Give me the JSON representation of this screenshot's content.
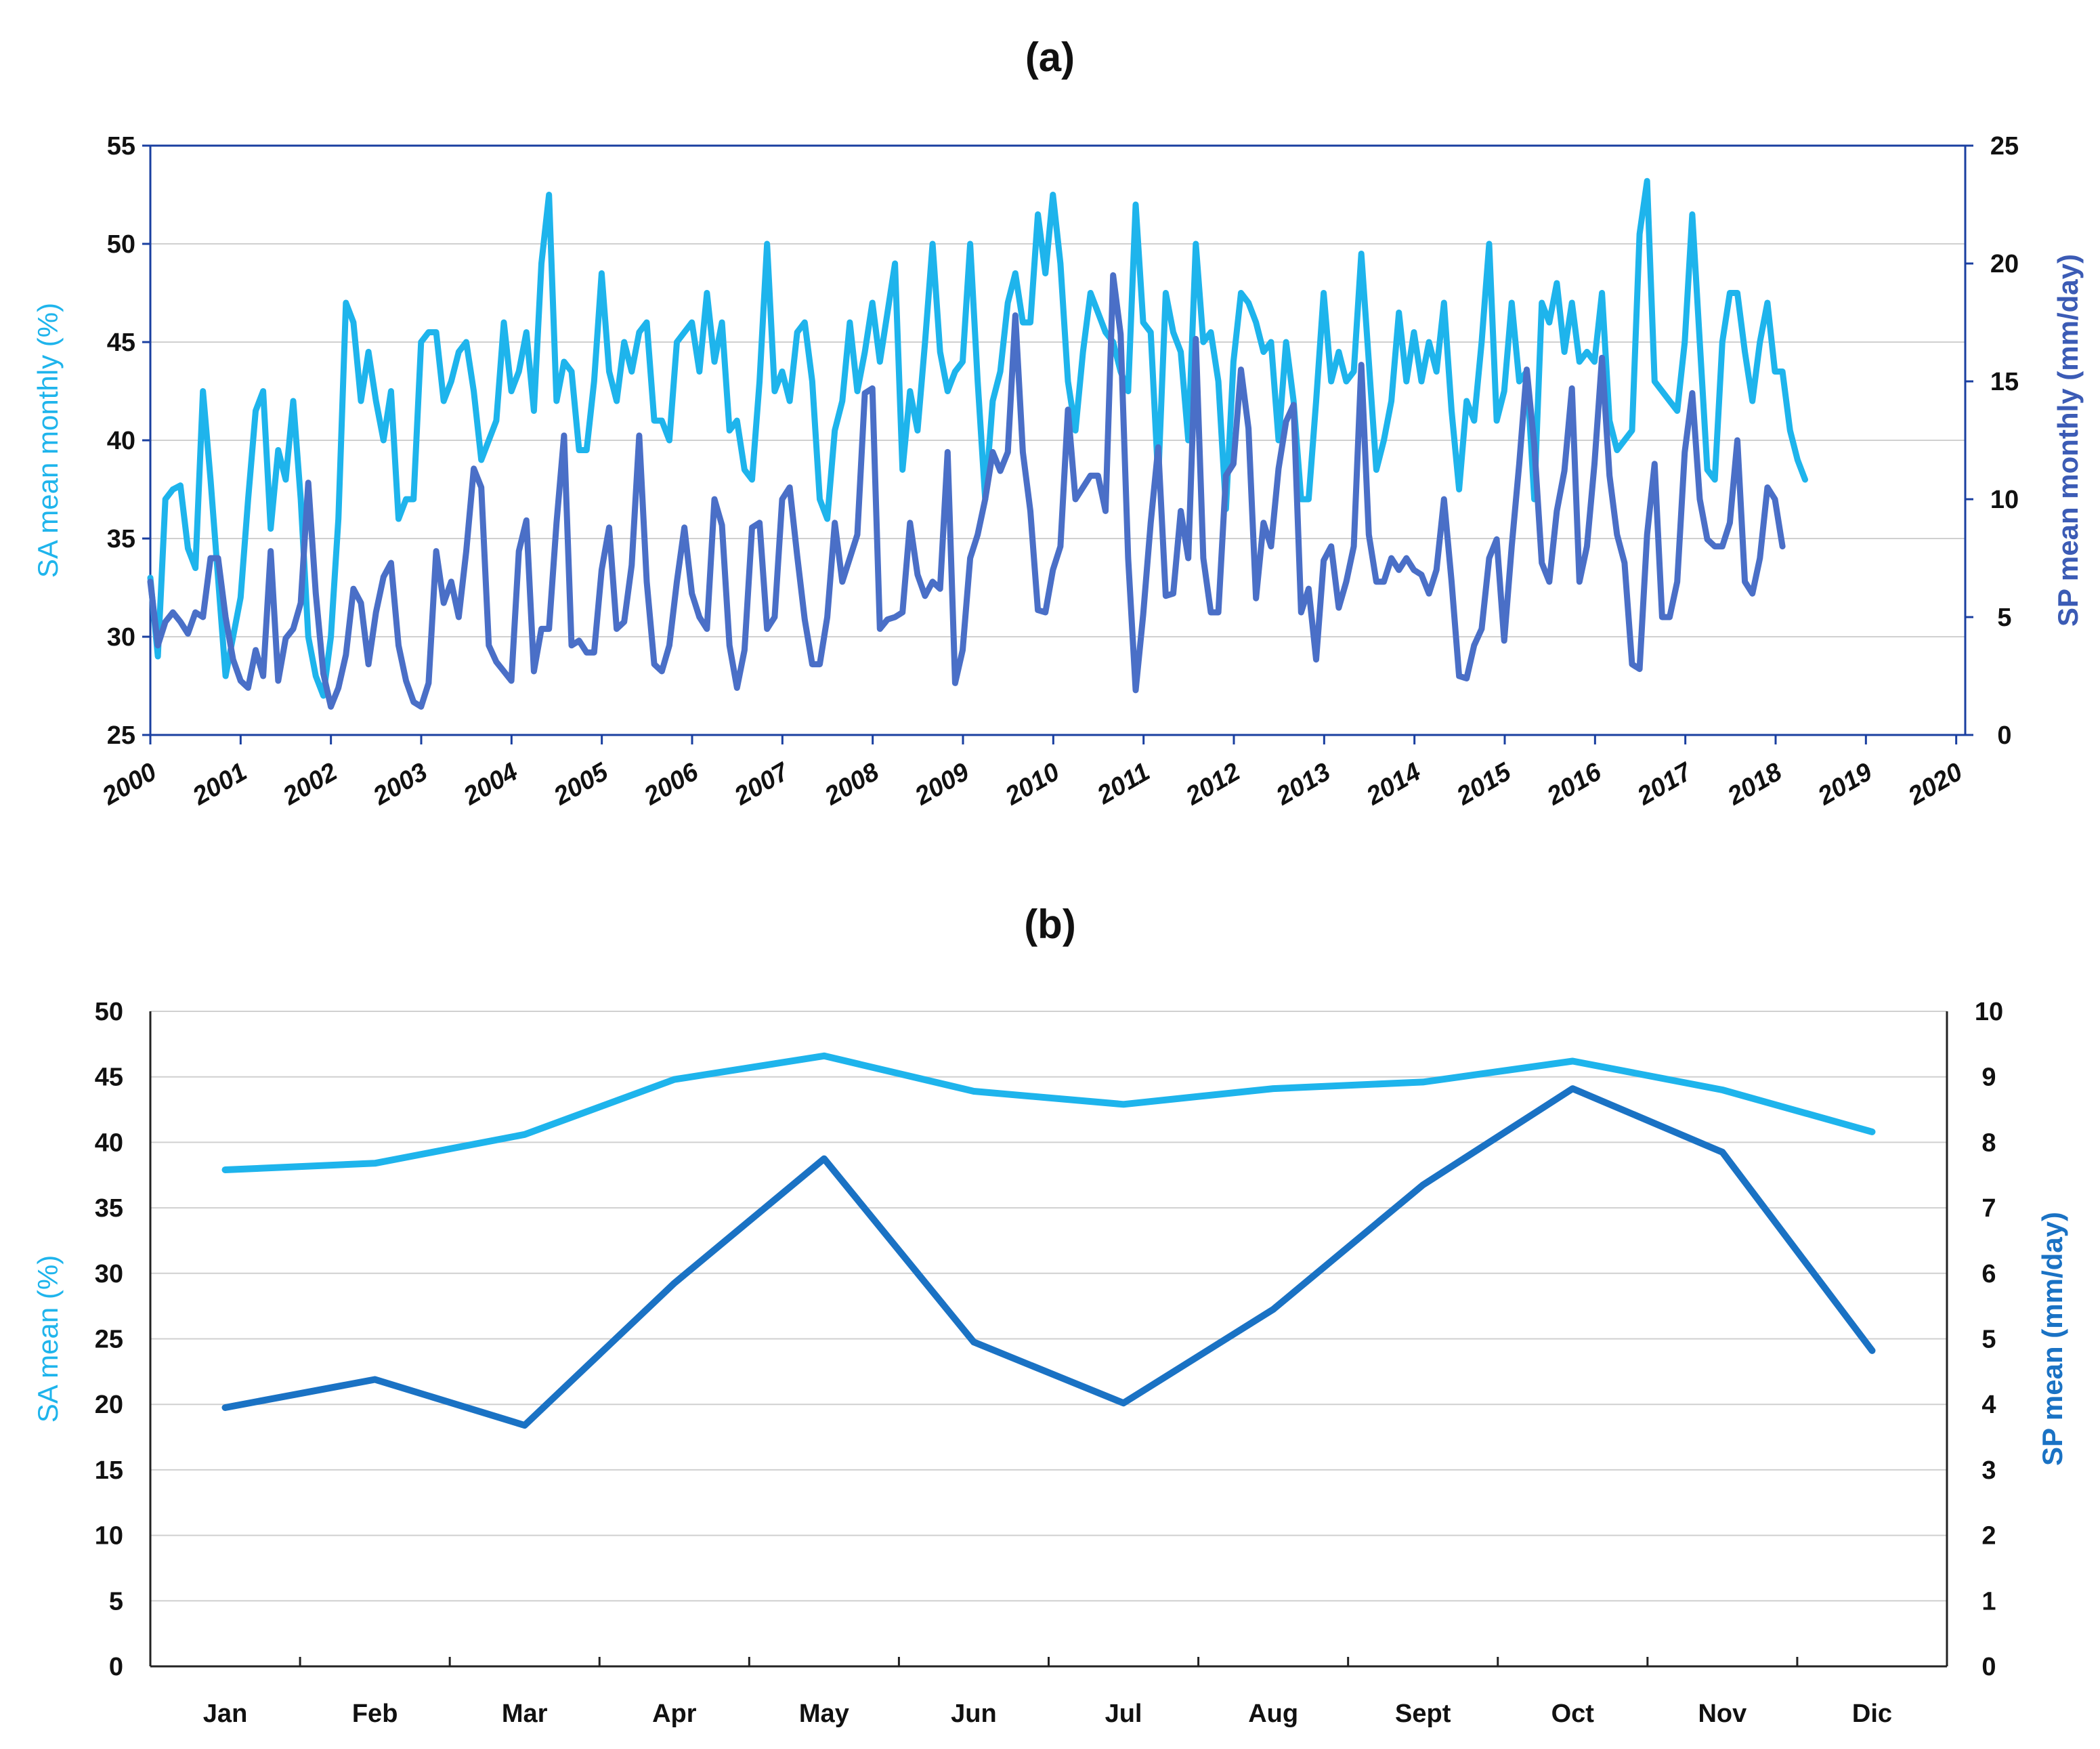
{
  "chart_data": [
    {
      "type": "line",
      "panel_label": "(a)",
      "ylabel_left": "SA mean monthly (%)",
      "ylabel_right": "SP mean monthly  (mm/day)",
      "ylim_left": [
        25,
        55
      ],
      "ylim_right": [
        0,
        25
      ],
      "yticks_left": [
        "25",
        "30",
        "35",
        "40",
        "45",
        "50",
        "55"
      ],
      "yticks_right": [
        "0",
        "5",
        "10",
        "15",
        "20",
        "25"
      ],
      "xlim": [
        2000,
        2020.1
      ],
      "xticks": [
        "2000",
        "2001",
        "2002",
        "2003",
        "2004",
        "2005",
        "2006",
        "2007",
        "2008",
        "2009",
        "2010",
        "2011",
        "2012",
        "2013",
        "2014",
        "2015",
        "2016",
        "2017",
        "2018",
        "2019",
        "2020"
      ],
      "grid": true,
      "series": [
        {
          "name": "SA",
          "axis": "left",
          "color": "#1EB4EC",
          "x_start": 2000,
          "x_step": 0.0833,
          "values": [
            33,
            29,
            37,
            37.5,
            37.7,
            34.5,
            33.5,
            42.5,
            38,
            33,
            28,
            30,
            32,
            37,
            41.5,
            42.5,
            35.5,
            39.5,
            38,
            42,
            37,
            30,
            28,
            27,
            30,
            36,
            47,
            46,
            42,
            44.5,
            42,
            40,
            42.5,
            36,
            37,
            37,
            45,
            45.5,
            45.5,
            42,
            43,
            44.5,
            45,
            42.5,
            39,
            40,
            41,
            46,
            42.5,
            43.5,
            45.5,
            41.5,
            49,
            52.5,
            42,
            44,
            43.5,
            39.5,
            39.5,
            43,
            48.5,
            43.5,
            42,
            45,
            43.5,
            45.5,
            46,
            41,
            41,
            40,
            45,
            45.5,
            46,
            43.5,
            47.5,
            44,
            46,
            40.5,
            41,
            38.5,
            38,
            43,
            50,
            42.5,
            43.5,
            42,
            45.5,
            46,
            43,
            37,
            36,
            40.5,
            42,
            46,
            42.5,
            44.5,
            47,
            44,
            46.5,
            49,
            38.5,
            42.5,
            40.5,
            45,
            50,
            44.5,
            42.5,
            43.5,
            44,
            50,
            43,
            37,
            42,
            43.5,
            47,
            48.5,
            46,
            46,
            51.5,
            48.5,
            52.5,
            49,
            43,
            40.5,
            44.5,
            47.5,
            46.5,
            45.5,
            45,
            43.5,
            42.5,
            52,
            46,
            45.5,
            38,
            47.5,
            45.5,
            44.5,
            40,
            50,
            45,
            45.5,
            43,
            36.5,
            44,
            47.5,
            47,
            46,
            44.5,
            45,
            40,
            45,
            42,
            37,
            37,
            42,
            47.5,
            43,
            44.5,
            43,
            43.5,
            49.5,
            44,
            38.5,
            40,
            42,
            46.5,
            43,
            45.5,
            43,
            45,
            43.5,
            47,
            41.5,
            37.5,
            42,
            41,
            45,
            50,
            41,
            42.5,
            47,
            43,
            43.5,
            37,
            47,
            46,
            48,
            44.5,
            47,
            44,
            44.5,
            44,
            47.5,
            41,
            39.5,
            40,
            40.5,
            50.5,
            53.2,
            43,
            42.5,
            42,
            41.5,
            45,
            51.5,
            45,
            38.5,
            38,
            45,
            47.5,
            47.5,
            44.5,
            42,
            45,
            47,
            43.5,
            43.5,
            40.5,
            39,
            38
          ]
        },
        {
          "name": "SP",
          "axis": "right",
          "color": "#4A6FC7",
          "x_start": 2000,
          "x_step": 0.0833,
          "values": [
            6.5,
            3.8,
            4.8,
            5.2,
            4.8,
            4.3,
            5.2,
            5.0,
            7.5,
            7.5,
            5.0,
            3.2,
            2.3,
            2.0,
            3.6,
            2.5,
            7.8,
            2.3,
            4.1,
            4.5,
            5.6,
            10.7,
            6.0,
            2.6,
            1.2,
            2.0,
            3.4,
            6.2,
            5.6,
            3.0,
            5.2,
            6.7,
            7.3,
            3.8,
            2.3,
            1.4,
            1.2,
            2.2,
            7.8,
            5.6,
            6.5,
            5.0,
            7.8,
            11.3,
            10.5,
            3.8,
            3.1,
            2.7,
            2.3,
            7.8,
            9.1,
            2.7,
            4.5,
            4.5,
            9.0,
            12.7,
            3.8,
            4.0,
            3.5,
            3.5,
            7.0,
            8.8,
            4.5,
            4.8,
            7.2,
            12.7,
            6.5,
            3.0,
            2.7,
            3.8,
            6.5,
            8.8,
            6.0,
            5.0,
            4.5,
            10.0,
            8.9,
            3.8,
            2.0,
            3.6,
            8.8,
            9.0,
            4.5,
            5.0,
            10.0,
            10.5,
            7.6,
            4.9,
            3.0,
            3.0,
            5.0,
            9.0,
            6.5,
            7.5,
            8.5,
            14.5,
            14.7,
            4.5,
            4.9,
            5.0,
            5.2,
            9.0,
            6.8,
            5.9,
            6.5,
            6.2,
            12.0,
            2.2,
            3.6,
            7.5,
            8.5,
            10.0,
            12.0,
            11.2,
            12.0,
            17.8,
            12.0,
            9.5,
            5.3,
            5.2,
            7.0,
            8.0,
            13.8,
            10.0,
            10.5,
            11.0,
            11.0,
            9.5,
            19.5,
            17.0,
            7.5,
            1.9,
            5.1,
            9.0,
            12.2,
            5.9,
            6.0,
            9.5,
            7.5,
            16.8,
            7.5,
            5.2,
            5.2,
            11.0,
            11.5,
            15.5,
            13.0,
            5.8,
            9.0,
            8.0,
            11.3,
            13.3,
            14.0,
            5.2,
            6.2,
            3.2,
            7.4,
            8.0,
            5.4,
            6.5,
            8.0,
            15.7,
            8.5,
            6.5,
            6.5,
            7.5,
            7.0,
            7.5,
            7.0,
            6.8,
            6.0,
            7.0,
            10.0,
            6.5,
            2.5,
            2.4,
            3.8,
            4.5,
            7.5,
            8.3,
            4.0,
            8.0,
            11.5,
            15.5,
            12.3,
            7.3,
            6.5,
            9.5,
            11.2,
            14.7,
            6.5,
            8.0,
            11.5,
            16.0,
            11.0,
            8.5,
            7.3,
            3.0,
            2.8,
            8.5,
            11.5,
            5.0,
            5.0,
            6.5,
            12.0,
            14.5,
            10.0,
            8.3,
            8.0,
            8.0,
            9.0,
            12.5,
            6.5,
            6.0,
            7.5,
            10.5,
            10.0,
            8.0
          ]
        }
      ]
    },
    {
      "type": "line",
      "panel_label": "(b)",
      "ylabel_left": "SA mean (%)",
      "ylabel_right": "SP mean (mm/day)",
      "ylim_left": [
        0,
        50
      ],
      "ylim_right": [
        0,
        10
      ],
      "yticks_left": [
        "0",
        "5",
        "10",
        "15",
        "20",
        "25",
        "30",
        "35",
        "40",
        "45",
        "50"
      ],
      "yticks_right": [
        "0",
        "1",
        "2",
        "3",
        "4",
        "5",
        "6",
        "7",
        "8",
        "9",
        "10"
      ],
      "categories": [
        "Jan",
        "Feb",
        "Mar",
        "Apr",
        "May",
        "Jun",
        "Jul",
        "Aug",
        "Sept",
        "Oct",
        "Nov",
        "Dic"
      ],
      "grid": true,
      "series": [
        {
          "name": "SA",
          "axis": "left",
          "color": "#1EB4EC",
          "values": [
            37.9,
            38.4,
            40.6,
            44.8,
            46.6,
            43.9,
            42.9,
            44.1,
            44.6,
            46.2,
            44.0,
            40.8
          ]
        },
        {
          "name": "SP",
          "axis": "right",
          "color": "#1A72C4",
          "values": [
            3.95,
            4.38,
            3.68,
            5.85,
            7.75,
            4.95,
            4.02,
            5.45,
            7.35,
            8.82,
            7.85,
            4.82
          ]
        }
      ]
    }
  ]
}
